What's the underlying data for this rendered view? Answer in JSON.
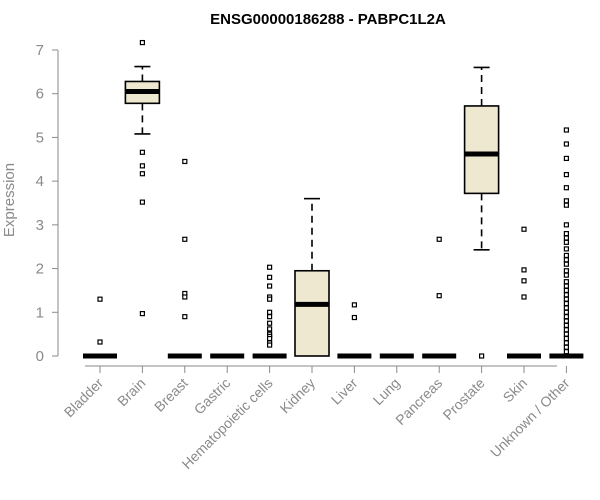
{
  "chart_data": {
    "type": "box",
    "title": "ENSG00000186288 - PABPC1L2A",
    "xlabel": "",
    "ylabel": "Expression",
    "ylim": [
      0,
      7
    ],
    "yticks": [
      0,
      1,
      2,
      3,
      4,
      5,
      6,
      7
    ],
    "categories": [
      "Bladder",
      "Brain",
      "Breast",
      "Gastric",
      "Hematopoietic cells",
      "Kidney",
      "Liver",
      "Lung",
      "Pancreas",
      "Prostate",
      "Skin",
      "Unknown / Other"
    ],
    "series": [
      {
        "name": "Bladder",
        "q1": 0,
        "median": 0,
        "q3": 0,
        "whisker_low": 0,
        "whisker_high": 0,
        "outliers": [
          0.32,
          1.3
        ]
      },
      {
        "name": "Brain",
        "q1": 5.78,
        "median": 6.05,
        "q3": 6.28,
        "whisker_low": 5.08,
        "whisker_high": 6.62,
        "outliers": [
          7.17,
          4.66,
          4.35,
          4.17,
          3.52,
          0.97
        ]
      },
      {
        "name": "Breast",
        "q1": 0,
        "median": 0,
        "q3": 0,
        "whisker_low": 0,
        "whisker_high": 0,
        "outliers": [
          4.45,
          2.67,
          1.43,
          1.35,
          0.9
        ]
      },
      {
        "name": "Gastric",
        "q1": 0,
        "median": 0,
        "q3": 0,
        "whisker_low": 0,
        "whisker_high": 0,
        "outliers": []
      },
      {
        "name": "Hematopoietic cells",
        "q1": 0,
        "median": 0,
        "q3": 0,
        "whisker_low": 0,
        "whisker_high": 0,
        "outliers": [
          2.03,
          1.8,
          1.6,
          1.35,
          1.3,
          1.0,
          0.9,
          0.75,
          0.62,
          0.5,
          0.45,
          0.4,
          0.3,
          0.25
        ]
      },
      {
        "name": "Kidney",
        "q1": 0,
        "median": 1.18,
        "q3": 1.95,
        "whisker_low": 0,
        "whisker_high": 3.6,
        "outliers": []
      },
      {
        "name": "Liver",
        "q1": 0,
        "median": 0,
        "q3": 0,
        "whisker_low": 0,
        "whisker_high": 0,
        "outliers": [
          1.17,
          0.88
        ]
      },
      {
        "name": "Lung",
        "q1": 0,
        "median": 0,
        "q3": 0,
        "whisker_low": 0,
        "whisker_high": 0,
        "outliers": []
      },
      {
        "name": "Pancreas",
        "q1": 0,
        "median": 0,
        "q3": 0,
        "whisker_low": 0,
        "whisker_high": 0,
        "outliers": [
          2.67,
          1.38
        ]
      },
      {
        "name": "Prostate",
        "q1": 3.72,
        "median": 4.62,
        "q3": 5.72,
        "whisker_low": 2.43,
        "whisker_high": 6.6,
        "outliers": [
          0
        ]
      },
      {
        "name": "Skin",
        "q1": 0,
        "median": 0,
        "q3": 0,
        "whisker_low": 0,
        "whisker_high": 0,
        "outliers": [
          2.9,
          1.97,
          1.72,
          1.35
        ]
      },
      {
        "name": "Unknown / Other",
        "q1": 0,
        "median": 0,
        "q3": 0,
        "whisker_low": 0,
        "whisker_high": 0,
        "outliers": [
          5.17,
          4.85,
          4.52,
          4.15,
          3.85,
          3.55,
          3.45,
          3.0,
          2.8,
          2.7,
          2.6,
          2.45,
          2.3,
          2.2,
          2.1,
          1.95,
          1.85,
          1.7,
          1.6,
          1.5,
          1.4,
          1.3,
          1.2,
          1.1,
          1.0,
          0.9,
          0.8,
          0.7,
          0.6,
          0.5,
          0.4,
          0.3,
          0.2,
          0.1
        ]
      }
    ]
  },
  "colors": {
    "box_fill": "#efe8d0",
    "axis": "#8a8a8a"
  }
}
